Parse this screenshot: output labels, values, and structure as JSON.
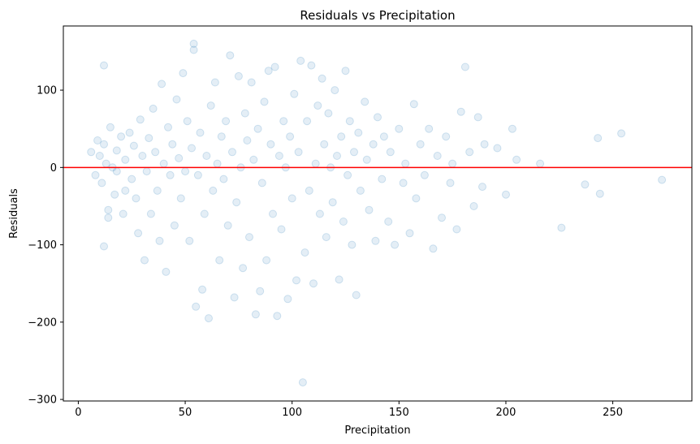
{
  "chart_data": {
    "type": "scatter",
    "title": "Residuals vs Precipitation",
    "xlabel": "Precipitation",
    "ylabel": "Residuals",
    "xlim": [
      -7,
      287
    ],
    "ylim": [
      -302,
      183
    ],
    "x_ticks": [
      0,
      50,
      100,
      150,
      200,
      250
    ],
    "y_ticks": [
      -300,
      -200,
      -100,
      0,
      100
    ],
    "y_tick_labels": [
      "−300",
      "−200",
      "−100",
      "0",
      "100"
    ],
    "point_color": "#1f77b4",
    "point_alpha": 0.12,
    "reference_line": {
      "y": 0,
      "color": "#ff0000"
    },
    "grid": false,
    "series": [
      {
        "points": [
          [
            6,
            20
          ],
          [
            8,
            -10
          ],
          [
            9,
            35
          ],
          [
            10,
            15
          ],
          [
            11,
            -20
          ],
          [
            12,
            30
          ],
          [
            12,
            132
          ],
          [
            12,
            -102
          ],
          [
            13,
            5
          ],
          [
            14,
            -55
          ],
          [
            14,
            -65
          ],
          [
            15,
            52
          ],
          [
            16,
            0
          ],
          [
            17,
            -35
          ],
          [
            18,
            -5
          ],
          [
            18,
            22
          ],
          [
            20,
            40
          ],
          [
            21,
            -60
          ],
          [
            22,
            10
          ],
          [
            22,
            -30
          ],
          [
            24,
            45
          ],
          [
            25,
            -15
          ],
          [
            26,
            28
          ],
          [
            27,
            -40
          ],
          [
            28,
            -85
          ],
          [
            29,
            62
          ],
          [
            30,
            15
          ],
          [
            31,
            -120
          ],
          [
            32,
            -5
          ],
          [
            33,
            38
          ],
          [
            34,
            -60
          ],
          [
            35,
            76
          ],
          [
            36,
            20
          ],
          [
            37,
            -30
          ],
          [
            38,
            -95
          ],
          [
            39,
            108
          ],
          [
            40,
            5
          ],
          [
            41,
            -135
          ],
          [
            42,
            52
          ],
          [
            43,
            -10
          ],
          [
            44,
            30
          ],
          [
            45,
            -75
          ],
          [
            46,
            88
          ],
          [
            47,
            12
          ],
          [
            48,
            -40
          ],
          [
            49,
            122
          ],
          [
            50,
            -5
          ],
          [
            51,
            60
          ],
          [
            52,
            -95
          ],
          [
            53,
            25
          ],
          [
            54,
            160
          ],
          [
            54,
            152
          ],
          [
            55,
            -180
          ],
          [
            56,
            -10
          ],
          [
            57,
            45
          ],
          [
            58,
            -158
          ],
          [
            59,
            -60
          ],
          [
            60,
            15
          ],
          [
            61,
            -195
          ],
          [
            62,
            80
          ],
          [
            63,
            -30
          ],
          [
            64,
            110
          ],
          [
            65,
            5
          ],
          [
            66,
            -120
          ],
          [
            67,
            40
          ],
          [
            68,
            -15
          ],
          [
            69,
            60
          ],
          [
            70,
            -75
          ],
          [
            71,
            145
          ],
          [
            72,
            20
          ],
          [
            73,
            -168
          ],
          [
            74,
            -45
          ],
          [
            75,
            118
          ],
          [
            76,
            0
          ],
          [
            77,
            -130
          ],
          [
            78,
            70
          ],
          [
            79,
            35
          ],
          [
            80,
            -90
          ],
          [
            81,
            110
          ],
          [
            82,
            10
          ],
          [
            83,
            -190
          ],
          [
            84,
            50
          ],
          [
            85,
            -160
          ],
          [
            86,
            -20
          ],
          [
            87,
            85
          ],
          [
            88,
            -120
          ],
          [
            89,
            125
          ],
          [
            90,
            30
          ],
          [
            91,
            -60
          ],
          [
            92,
            130
          ],
          [
            93,
            -192
          ],
          [
            94,
            15
          ],
          [
            95,
            -80
          ],
          [
            96,
            60
          ],
          [
            97,
            0
          ],
          [
            98,
            -170
          ],
          [
            99,
            40
          ],
          [
            100,
            -40
          ],
          [
            101,
            95
          ],
          [
            102,
            -146
          ],
          [
            103,
            20
          ],
          [
            104,
            138
          ],
          [
            105,
            -278
          ],
          [
            106,
            -110
          ],
          [
            107,
            60
          ],
          [
            108,
            -30
          ],
          [
            109,
            132
          ],
          [
            110,
            -150
          ],
          [
            111,
            5
          ],
          [
            112,
            80
          ],
          [
            113,
            -60
          ],
          [
            114,
            115
          ],
          [
            115,
            30
          ],
          [
            116,
            -90
          ],
          [
            117,
            70
          ],
          [
            118,
            0
          ],
          [
            119,
            -45
          ],
          [
            120,
            100
          ],
          [
            121,
            15
          ],
          [
            122,
            -145
          ],
          [
            123,
            40
          ],
          [
            124,
            -70
          ],
          [
            125,
            125
          ],
          [
            126,
            -10
          ],
          [
            127,
            60
          ],
          [
            128,
            -100
          ],
          [
            129,
            20
          ],
          [
            130,
            -165
          ],
          [
            131,
            45
          ],
          [
            132,
            -30
          ],
          [
            134,
            85
          ],
          [
            135,
            10
          ],
          [
            136,
            -55
          ],
          [
            138,
            30
          ],
          [
            139,
            -95
          ],
          [
            140,
            65
          ],
          [
            142,
            -15
          ],
          [
            143,
            40
          ],
          [
            145,
            -70
          ],
          [
            146,
            20
          ],
          [
            148,
            -100
          ],
          [
            150,
            50
          ],
          [
            152,
            -20
          ],
          [
            153,
            5
          ],
          [
            155,
            -85
          ],
          [
            157,
            82
          ],
          [
            158,
            -40
          ],
          [
            160,
            30
          ],
          [
            162,
            -10
          ],
          [
            164,
            50
          ],
          [
            166,
            -105
          ],
          [
            168,
            15
          ],
          [
            170,
            -65
          ],
          [
            172,
            40
          ],
          [
            174,
            -20
          ],
          [
            175,
            5
          ],
          [
            177,
            -80
          ],
          [
            179,
            72
          ],
          [
            181,
            130
          ],
          [
            183,
            20
          ],
          [
            185,
            -50
          ],
          [
            187,
            65
          ],
          [
            189,
            -25
          ],
          [
            190,
            30
          ],
          [
            196,
            25
          ],
          [
            200,
            -35
          ],
          [
            203,
            50
          ],
          [
            205,
            10
          ],
          [
            216,
            5
          ],
          [
            226,
            -78
          ],
          [
            237,
            -22
          ],
          [
            243,
            38
          ],
          [
            244,
            -34
          ],
          [
            254,
            44
          ],
          [
            273,
            -16
          ]
        ]
      }
    ]
  }
}
